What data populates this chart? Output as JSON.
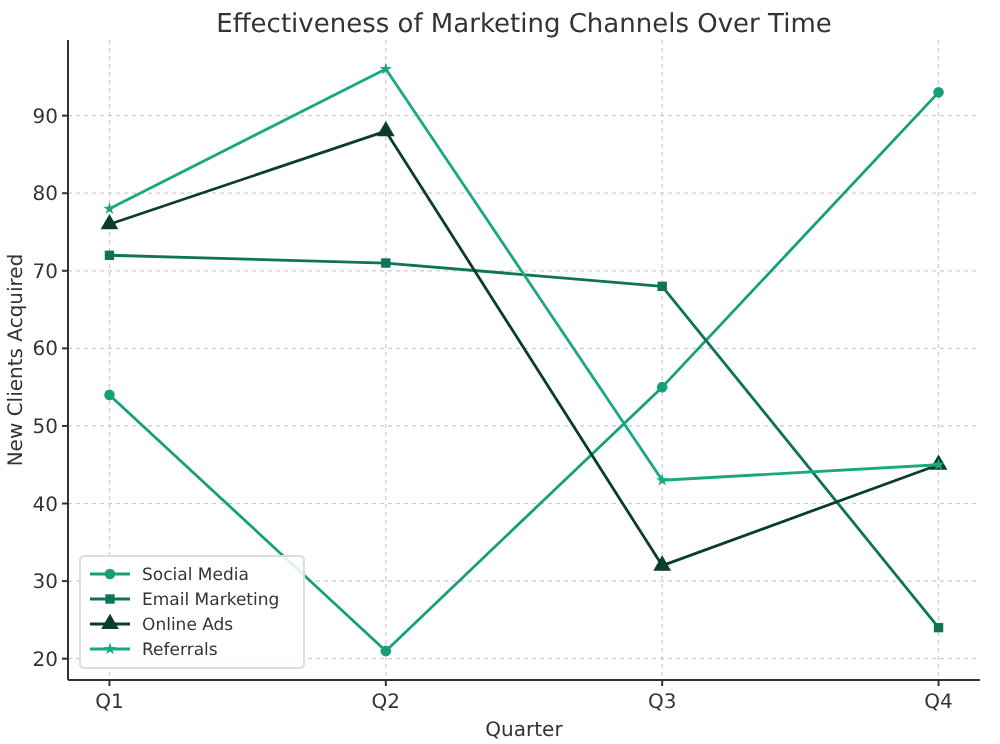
{
  "chart_data": {
    "type": "line",
    "title": "Effectiveness of Marketing Channels Over Time",
    "xlabel": "Quarter",
    "ylabel": "New Clients Acquired",
    "categories": [
      "Q1",
      "Q2",
      "Q3",
      "Q4"
    ],
    "series": [
      {
        "name": "Social Media",
        "color": "#16a07a",
        "marker": "circle",
        "values": [
          54,
          21,
          55,
          93
        ]
      },
      {
        "name": "Email Marketing",
        "color": "#0e7358",
        "marker": "square",
        "values": [
          72,
          71,
          68,
          24
        ]
      },
      {
        "name": "Online Ads",
        "color": "#0a3d2c",
        "marker": "triangle",
        "values": [
          76,
          88,
          32,
          45
        ]
      },
      {
        "name": "Referrals",
        "color": "#1aa883",
        "marker": "star",
        "values": [
          78,
          96,
          43,
          45
        ]
      }
    ],
    "ylim": [
      17.25,
      99.75
    ],
    "yticks": [
      20,
      30,
      40,
      50,
      60,
      70,
      80,
      90
    ],
    "grid": true,
    "legend": "bottom left",
    "line_style": "solid"
  }
}
